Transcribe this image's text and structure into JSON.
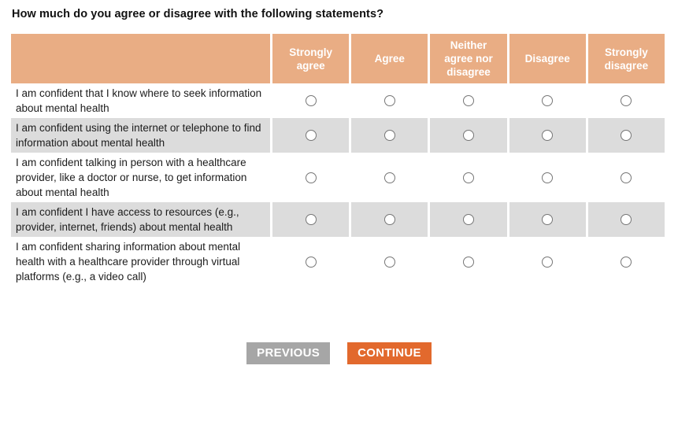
{
  "question": {
    "title": "How much do you agree or disagree with the following statements?"
  },
  "table": {
    "columns": [
      "Strongly agree",
      "Agree",
      "Neither agree nor disagree",
      "Disagree",
      "Strongly disagree"
    ],
    "rows": [
      {
        "statement": "I am confident that I know where to seek information about mental health",
        "selected_option": null
      },
      {
        "statement": "I am confident using the internet or telephone to find information about mental health",
        "selected_option": null
      },
      {
        "statement": "I am confident talking in person with a healthcare provider, like a doctor or nurse, to get information about mental health",
        "selected_option": null
      },
      {
        "statement": "I am confident I have access to resources (e.g., provider, internet, friends) about mental health",
        "selected_option": null
      },
      {
        "statement": "I am confident sharing information about mental health with a healthcare provider through virtual platforms (e.g., a video call)",
        "selected_option": null
      }
    ]
  },
  "buttons": {
    "previous": "PREVIOUS",
    "continue": "CONTINUE"
  },
  "colors": {
    "header_bg": "#e9ad84",
    "row_alt_bg": "#dcdcdc",
    "previous_bg": "#a6a6a6",
    "continue_bg": "#e2692d"
  }
}
